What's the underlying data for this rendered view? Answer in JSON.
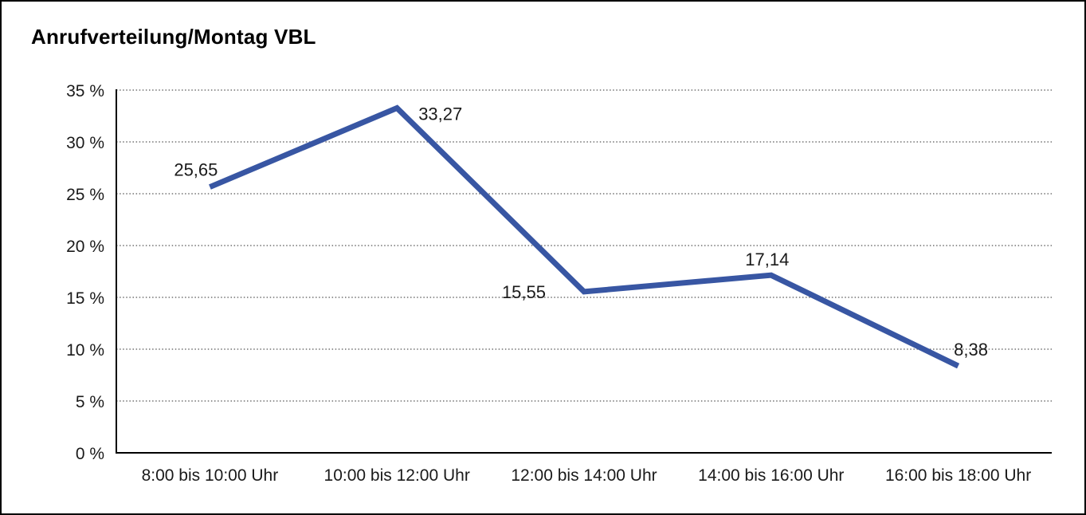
{
  "frame": {
    "background": "#ffffff",
    "border_color": "#000000"
  },
  "chart_data": {
    "type": "line",
    "title": "Anrufverteilung/Montag VBL",
    "categories": [
      "8:00 bis 10:00 Uhr",
      "10:00 bis 12:00 Uhr",
      "12:00 bis 14:00 Uhr",
      "14:00 bis 16:00 Uhr",
      "16:00 bis 18:00 Uhr"
    ],
    "values": [
      25.65,
      33.27,
      15.55,
      17.14,
      8.38
    ],
    "value_labels": [
      "25,65",
      "33,27",
      "15,55",
      "17,14",
      "8,38"
    ],
    "xlabel": "",
    "ylabel": "",
    "ylim": [
      0,
      35
    ],
    "y_tick_values": [
      0,
      5,
      10,
      15,
      20,
      25,
      30,
      35
    ],
    "y_tick_labels": [
      "0 %",
      "5 %",
      "10 %",
      "15 %",
      "20 %",
      "25 %",
      "30 %",
      "35 %"
    ],
    "grid": "horizontal-dotted",
    "legend_position": "none",
    "line_color": "#3856A3",
    "axis_color": "#000000",
    "gridline_color": "#555555",
    "text_color": "#1a1a1a"
  }
}
